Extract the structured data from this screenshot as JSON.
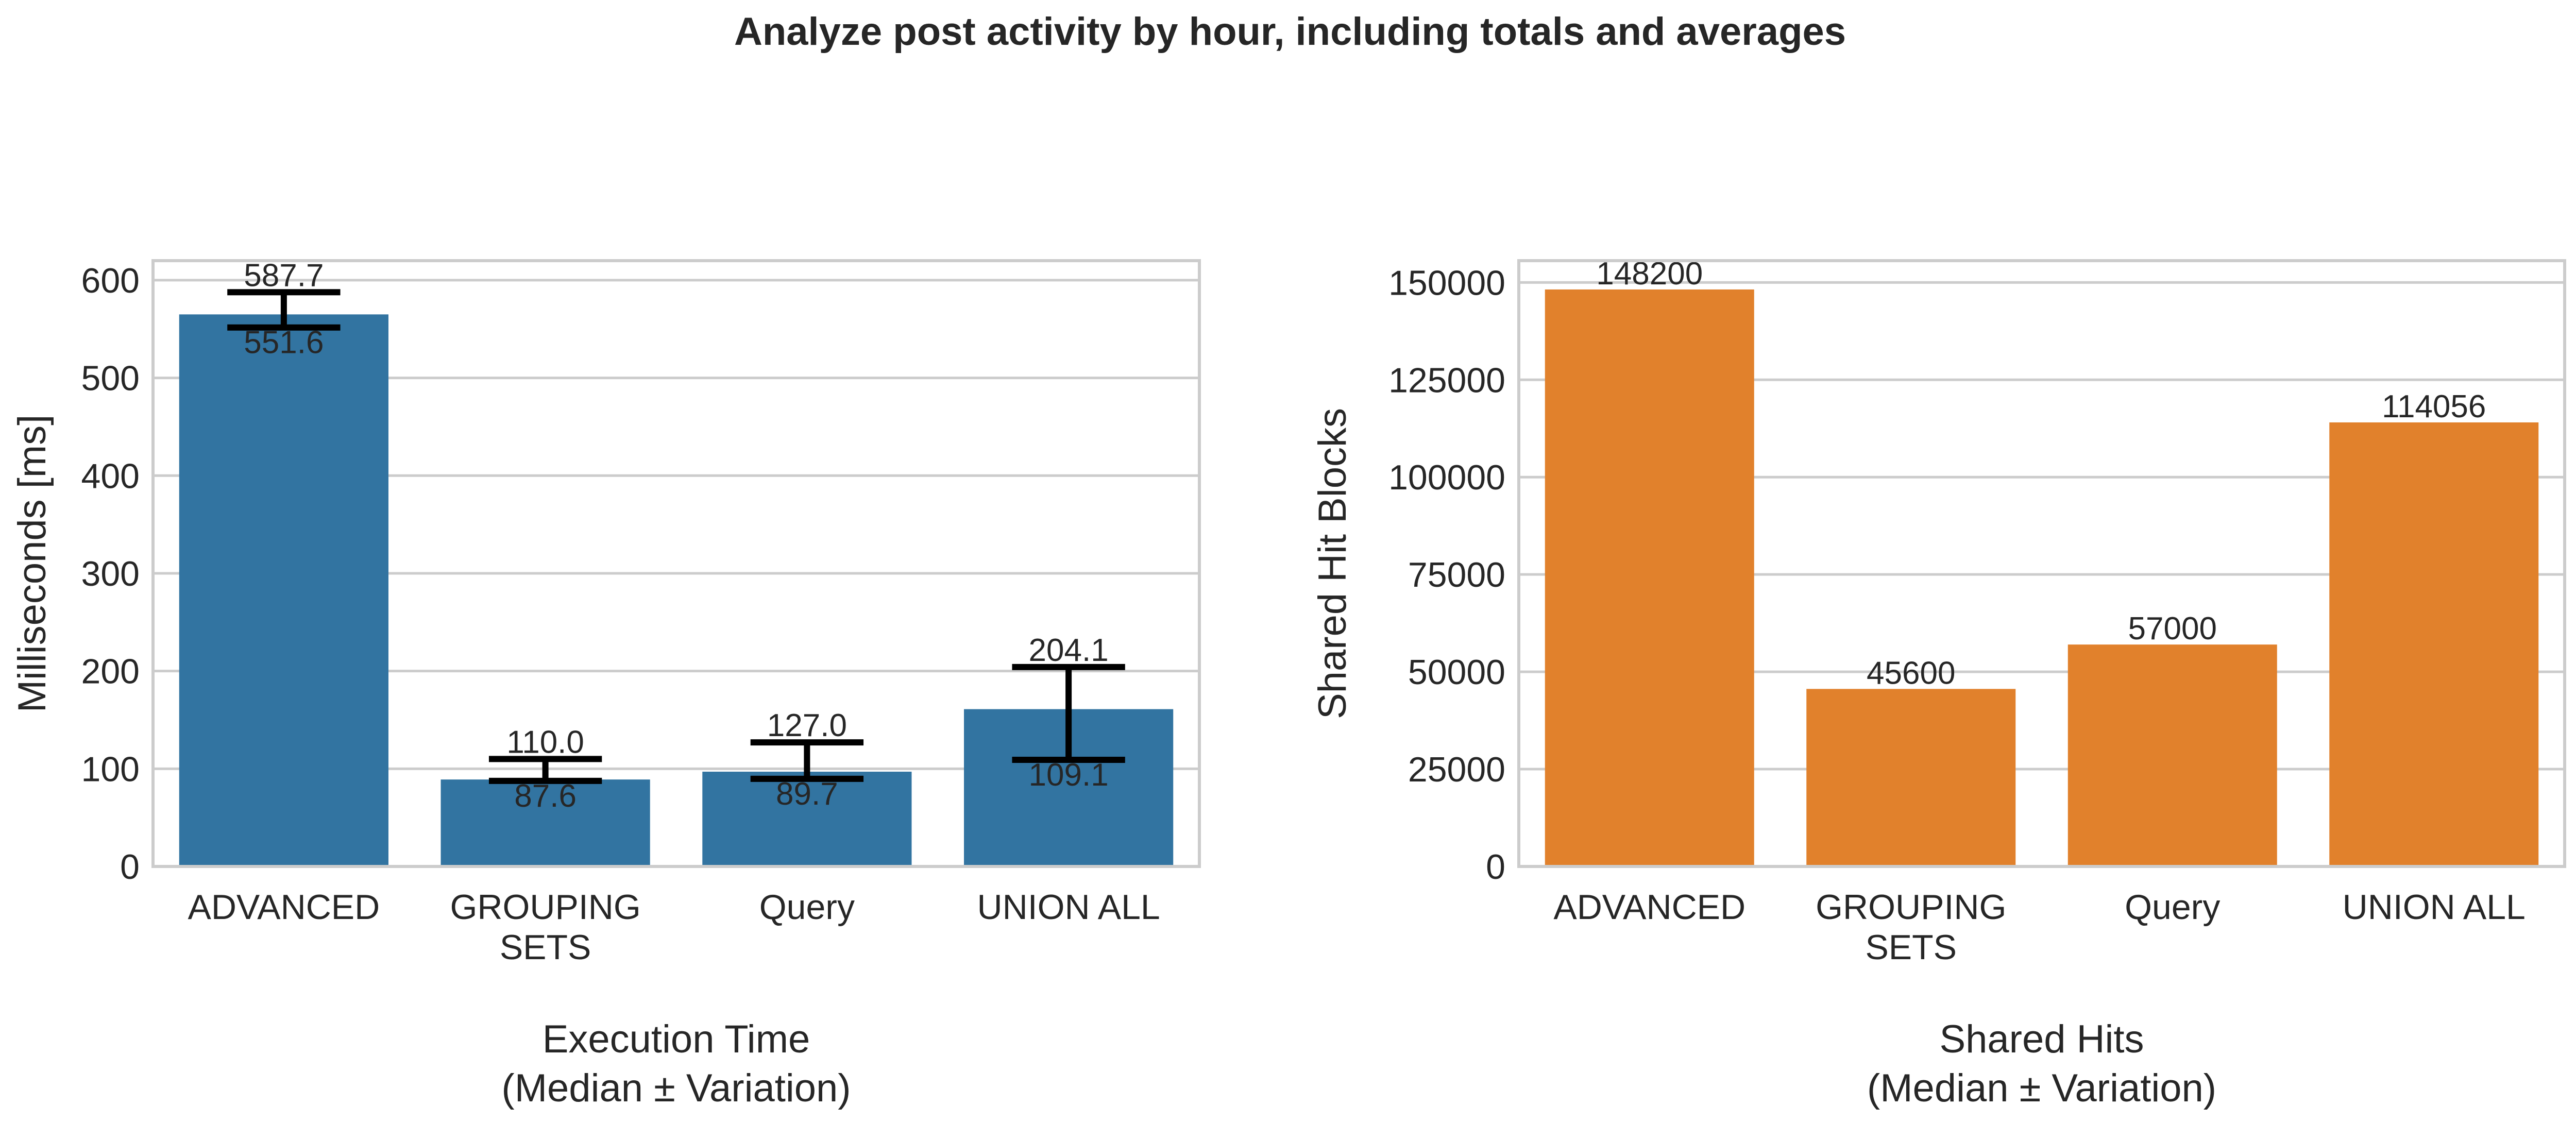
{
  "title": "Analyze post activity by hour, including totals and averages",
  "colors": {
    "left_bar": "#3274a1",
    "right_bar": "#e1812c",
    "grid": "#cccccc",
    "error": "#000000"
  },
  "chart_data": [
    {
      "type": "bar",
      "categories": [
        "ADVANCED",
        "GROUPING\nSETS",
        "Query",
        "UNION ALL"
      ],
      "values": [
        565,
        89,
        97,
        161
      ],
      "error_high": [
        587.7,
        110.0,
        127.0,
        204.1
      ],
      "error_low": [
        551.6,
        87.6,
        89.7,
        109.1
      ],
      "error_high_labels": [
        "587.7",
        "110.0",
        "127.0",
        "204.1"
      ],
      "error_low_labels": [
        "551.6",
        "87.6",
        "89.7",
        "109.1"
      ],
      "title": "",
      "xlabel": "Execution Time\n(Median ± Variation)",
      "ylabel": "Milliseconds [ms]",
      "ylim": [
        0,
        620
      ],
      "yticks": [
        0,
        100,
        200,
        300,
        400,
        500,
        600
      ],
      "ytick_labels": [
        "0",
        "100",
        "200",
        "300",
        "400",
        "500",
        "600"
      ],
      "grid": true,
      "color": "#3274a1"
    },
    {
      "type": "bar",
      "categories": [
        "ADVANCED",
        "GROUPING\nSETS",
        "Query",
        "UNION ALL"
      ],
      "values": [
        148200,
        45600,
        57000,
        114056
      ],
      "value_labels": [
        "148200",
        "45600",
        "57000",
        "114056"
      ],
      "title": "",
      "xlabel": "Shared Hits\n(Median ± Variation)",
      "ylabel": "Shared Hit Blocks",
      "ylim": [
        0,
        155600
      ],
      "yticks": [
        0,
        25000,
        50000,
        75000,
        100000,
        125000,
        150000
      ],
      "ytick_labels": [
        "0",
        "25000",
        "50000",
        "75000",
        "100000",
        "125000",
        "150000"
      ],
      "grid": true,
      "color": "#e1812c"
    }
  ]
}
